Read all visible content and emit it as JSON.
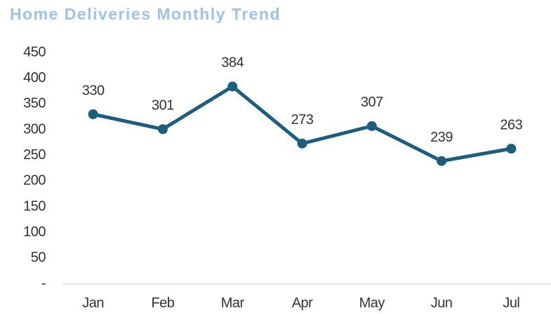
{
  "chart_data": {
    "type": "line",
    "title": "Home Deliveries Monthly Trend",
    "categories": [
      "Jan",
      "Feb",
      "Mar",
      "Apr",
      "May",
      "Jun",
      "Jul"
    ],
    "values": [
      330,
      301,
      384,
      273,
      307,
      239,
      263
    ],
    "color": "#1c5e7f",
    "ylim": [
      0,
      450
    ],
    "yticks": [
      {
        "value": 0,
        "label": "-"
      },
      50,
      100,
      150,
      200,
      250,
      300,
      350,
      400,
      450
    ],
    "grid": false
  }
}
